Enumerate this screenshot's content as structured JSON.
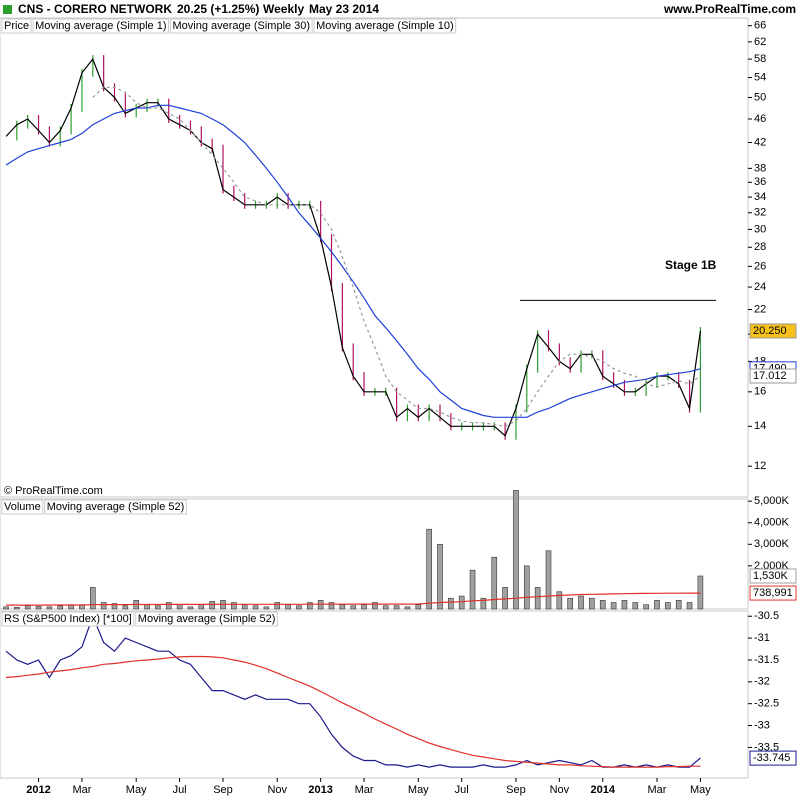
{
  "header": {
    "symbol": "CNS - CORERO NETWORK",
    "change": "20.25 (+1.25%)",
    "period": "Weekly",
    "date": "May 23 2014",
    "site": "www.ProRealTime.com"
  },
  "copyright": "© ProRealTime.com",
  "chart_data": [
    {
      "type": "line",
      "label": "Price",
      "log": true,
      "ylim": [
        10.65,
        68
      ],
      "yticks": [
        66,
        62,
        58,
        54,
        50,
        46,
        42,
        38,
        36,
        34,
        32,
        30,
        28,
        26,
        24,
        22,
        20,
        18,
        16,
        14,
        12
      ],
      "annotation": "Stage 1B",
      "resistance": 22.8,
      "series": [
        {
          "name": "Moving average (Simple 1)",
          "color": "#000000",
          "style": "line",
          "up_color": "#2e9e2e",
          "down_color": "#b0105e",
          "show_last": true,
          "label_bg": "#f6c21a",
          "values": [
            43,
            45,
            46,
            44,
            42,
            44,
            48,
            55,
            58,
            52,
            50,
            47,
            48,
            49,
            49,
            46,
            45,
            44,
            42,
            41,
            35,
            34,
            33,
            33,
            33,
            34,
            33,
            33,
            33,
            29,
            24,
            19,
            17,
            16,
            16,
            16,
            14.5,
            15,
            14.5,
            15,
            14.5,
            14,
            14,
            14,
            14,
            14,
            13.5,
            15,
            17.5,
            20,
            19,
            18,
            17.5,
            18.5,
            18.5,
            17,
            16.5,
            16,
            16,
            16.5,
            17,
            17,
            16.5,
            15,
            20.25
          ],
          "value_labels": [
            null,
            null,
            null,
            null,
            null,
            null,
            null,
            null,
            null,
            null,
            null,
            null,
            null,
            null,
            null,
            null,
            null,
            null,
            null,
            null,
            null,
            null,
            null,
            null,
            null,
            null,
            null,
            null,
            null,
            null,
            null,
            null,
            null,
            null,
            null,
            null,
            null,
            null,
            null,
            null,
            null,
            null,
            null,
            null,
            null,
            null,
            null,
            null,
            null,
            null,
            null,
            null,
            null,
            null,
            null,
            null,
            null,
            null,
            null,
            null,
            null,
            null,
            null,
            null,
            "20.250"
          ]
        },
        {
          "name": "Moving average (Simple 30)",
          "color": "#1f3fd8",
          "style": "line",
          "show_last": true,
          "label_bg": "#ffffff",
          "values": [
            38.5,
            39.5,
            40.5,
            41,
            41.5,
            42,
            42.5,
            43.5,
            45,
            46,
            47,
            47.5,
            48,
            48,
            48.5,
            48.5,
            48,
            47.5,
            47,
            46,
            45,
            43.5,
            42,
            40,
            38,
            36,
            34,
            32,
            30.5,
            29,
            27.5,
            26,
            24.5,
            23,
            21.5,
            20.5,
            19.5,
            18.5,
            17.5,
            16.8,
            16,
            15.5,
            15,
            14.8,
            14.6,
            14.5,
            14.5,
            14.5,
            14.5,
            14.8,
            15,
            15.3,
            15.6,
            15.8,
            16,
            16.2,
            16.4,
            16.6,
            16.7,
            16.8,
            17,
            17.1,
            17.2,
            17.3,
            17.49
          ],
          "value_labels": [
            null,
            null,
            null,
            null,
            null,
            null,
            null,
            null,
            null,
            null,
            null,
            null,
            null,
            null,
            null,
            null,
            null,
            null,
            null,
            null,
            null,
            null,
            null,
            null,
            null,
            null,
            null,
            null,
            null,
            null,
            null,
            null,
            null,
            null,
            null,
            null,
            null,
            null,
            null,
            null,
            null,
            null,
            null,
            null,
            null,
            null,
            null,
            null,
            null,
            null,
            null,
            null,
            null,
            null,
            null,
            null,
            null,
            null,
            null,
            null,
            null,
            null,
            null,
            null,
            "17.490"
          ]
        },
        {
          "name": "Moving average (Simple 10)",
          "color": "#9a9a9a",
          "style": "dashed",
          "show_last": true,
          "label_bg": "#ffffff",
          "values": [
            null,
            null,
            null,
            null,
            null,
            null,
            null,
            null,
            50,
            52,
            52,
            51,
            49,
            48,
            48,
            47,
            46,
            44,
            42,
            40,
            38,
            36,
            34,
            33.5,
            33,
            33,
            33,
            33,
            33,
            32,
            30,
            27,
            24,
            21,
            19,
            17,
            16,
            15.5,
            15,
            15,
            14.8,
            14.5,
            14.3,
            14.2,
            14.2,
            14.1,
            14,
            14.3,
            15,
            16,
            17,
            18,
            18.5,
            18.5,
            18.3,
            18,
            17.5,
            17.2,
            17,
            16.5,
            16.3,
            16.5,
            16.7,
            16.5,
            17.012
          ]
        }
      ]
    },
    {
      "type": "bar",
      "label": "Volume",
      "log": false,
      "ylim": [
        0,
        5100000
      ],
      "yticks": [
        {
          "value": 5000000,
          "label": "5,000K"
        },
        {
          "value": 4000000,
          "label": "4,000K"
        },
        {
          "value": 3000000,
          "label": "3,000K"
        },
        {
          "value": 2000000,
          "label": "2,000K"
        }
      ],
      "series": [
        {
          "name": "Volume",
          "color": "#a0a0a0",
          "style": "bars",
          "show_last": true,
          "label_bg": "#ffffff",
          "values": [
            100000,
            80000,
            150000,
            120000,
            100000,
            150000,
            200000,
            200000,
            1000000,
            300000,
            250000,
            150000,
            400000,
            200000,
            150000,
            300000,
            200000,
            100000,
            200000,
            350000,
            400000,
            300000,
            200000,
            150000,
            100000,
            300000,
            200000,
            150000,
            300000,
            400000,
            300000,
            200000,
            150000,
            200000,
            300000,
            150000,
            150000,
            100000,
            200000,
            3700000,
            3000000,
            500000,
            600000,
            1800000,
            500000,
            2400000,
            1000000,
            5500000,
            2000000,
            1000000,
            2700000,
            800000,
            500000,
            600000,
            500000,
            400000,
            300000,
            400000,
            300000,
            200000,
            400000,
            300000,
            400000,
            300000,
            1530000
          ],
          "value_labels": [
            null,
            null,
            null,
            null,
            null,
            null,
            null,
            null,
            null,
            null,
            null,
            null,
            null,
            null,
            null,
            null,
            null,
            null,
            null,
            null,
            null,
            null,
            null,
            null,
            null,
            null,
            null,
            null,
            null,
            null,
            null,
            null,
            null,
            null,
            null,
            null,
            null,
            null,
            null,
            null,
            null,
            null,
            null,
            null,
            null,
            null,
            null,
            null,
            null,
            null,
            null,
            null,
            null,
            null,
            null,
            null,
            null,
            null,
            null,
            null,
            null,
            null,
            null,
            null,
            "1,530K"
          ]
        },
        {
          "name": "Moving average (Simple 52)",
          "color": "#e0302a",
          "style": "line",
          "show_last": true,
          "label_bg": "#ffffff",
          "values": [
            180000,
            181000,
            182000,
            183000,
            184000,
            185000,
            186000,
            187000,
            200000,
            202000,
            204000,
            205000,
            208000,
            209000,
            210000,
            211000,
            212000,
            212000,
            213000,
            214000,
            216000,
            217000,
            218000,
            218000,
            218000,
            219000,
            220000,
            220000,
            221000,
            222000,
            223000,
            224000,
            225000,
            226000,
            227000,
            228000,
            229000,
            229000,
            230000,
            270000,
            300000,
            320000,
            340000,
            380000,
            400000,
            440000,
            470000,
            500000,
            540000,
            570000,
            600000,
            630000,
            650000,
            670000,
            680000,
            690000,
            700000,
            710000,
            720000,
            725000,
            728000,
            731000,
            734000,
            736000,
            738991
          ],
          "value_labels": [
            null,
            null,
            null,
            null,
            null,
            null,
            null,
            null,
            null,
            null,
            null,
            null,
            null,
            null,
            null,
            null,
            null,
            null,
            null,
            null,
            null,
            null,
            null,
            null,
            null,
            null,
            null,
            null,
            null,
            null,
            null,
            null,
            null,
            null,
            null,
            null,
            null,
            null,
            null,
            null,
            null,
            null,
            null,
            null,
            null,
            null,
            null,
            null,
            null,
            null,
            null,
            null,
            null,
            null,
            null,
            null,
            null,
            null,
            null,
            null,
            null,
            null,
            null,
            null,
            "738,991"
          ]
        }
      ]
    },
    {
      "type": "line",
      "label": "RS (S&P500 Index) [*100]",
      "log": false,
      "ylim": [
        -34.2,
        -30.38
      ],
      "yticks": [
        -30.5,
        -31,
        -31.5,
        -32,
        -32.5,
        -33,
        -33.5
      ],
      "categories": [
        null,
        null,
        null,
        "2012",
        null,
        null,
        null,
        "Mar",
        null,
        null,
        null,
        null,
        "May",
        null,
        null,
        null,
        "Jul",
        null,
        null,
        null,
        "Sep",
        null,
        null,
        null,
        null,
        "Nov",
        null,
        null,
        null,
        "2013",
        null,
        null,
        null,
        "Mar",
        null,
        null,
        null,
        null,
        "May",
        null,
        null,
        null,
        "Jul",
        null,
        null,
        null,
        null,
        "Sep",
        null,
        null,
        null,
        "Nov",
        null,
        null,
        null,
        "2014",
        null,
        null,
        null,
        null,
        "Mar",
        null,
        null,
        null,
        "May"
      ],
      "series": [
        {
          "name": "RS",
          "color": "#1a1a8c",
          "style": "line",
          "show_last": true,
          "label_bg": "#ffffff",
          "values": [
            -31.3,
            -31.5,
            -31.6,
            -31.5,
            -31.9,
            -31.5,
            -31.4,
            -31.2,
            -30.5,
            -31.1,
            -31.3,
            -31,
            -31.1,
            -31.2,
            -31.3,
            -31.3,
            -31.5,
            -31.6,
            -31.9,
            -32.2,
            -32.2,
            -32.3,
            -32.4,
            -32.3,
            -32.4,
            -32.4,
            -32.4,
            -32.5,
            -32.5,
            -32.8,
            -33.2,
            -33.5,
            -33.7,
            -33.8,
            -33.8,
            -33.9,
            -33.9,
            -33.95,
            -33.9,
            -33.95,
            -33.9,
            -33.95,
            -33.95,
            -33.95,
            -33.9,
            -33.95,
            -33.95,
            -33.9,
            -33.8,
            -33.9,
            -33.85,
            -33.8,
            -33.85,
            -33.9,
            -33.8,
            -33.95,
            -33.95,
            -33.9,
            -33.95,
            -33.9,
            -33.95,
            -33.9,
            -33.95,
            -33.95,
            -33.745
          ]
        },
        {
          "name": "Moving average (Simple 52)",
          "color": "#e0302a",
          "style": "line",
          "values": [
            -31.9,
            -31.88,
            -31.85,
            -31.82,
            -31.78,
            -31.75,
            -31.72,
            -31.68,
            -31.65,
            -31.6,
            -31.58,
            -31.55,
            -31.52,
            -31.5,
            -31.48,
            -31.45,
            -31.43,
            -31.42,
            -31.42,
            -31.43,
            -31.45,
            -31.5,
            -31.55,
            -31.62,
            -31.7,
            -31.8,
            -31.9,
            -32,
            -32.1,
            -32.22,
            -32.35,
            -32.48,
            -32.6,
            -32.72,
            -32.85,
            -32.97,
            -33.08,
            -33.2,
            -33.3,
            -33.4,
            -33.48,
            -33.55,
            -33.62,
            -33.68,
            -33.72,
            -33.76,
            -33.8,
            -33.82,
            -33.84,
            -33.86,
            -33.88,
            -33.9,
            -33.9,
            -33.92,
            -33.93,
            -33.94,
            -33.95,
            -33.95,
            -33.95,
            -33.95,
            -33.95,
            -33.94,
            -33.94,
            -33.93,
            -33.93
          ]
        }
      ]
    }
  ]
}
